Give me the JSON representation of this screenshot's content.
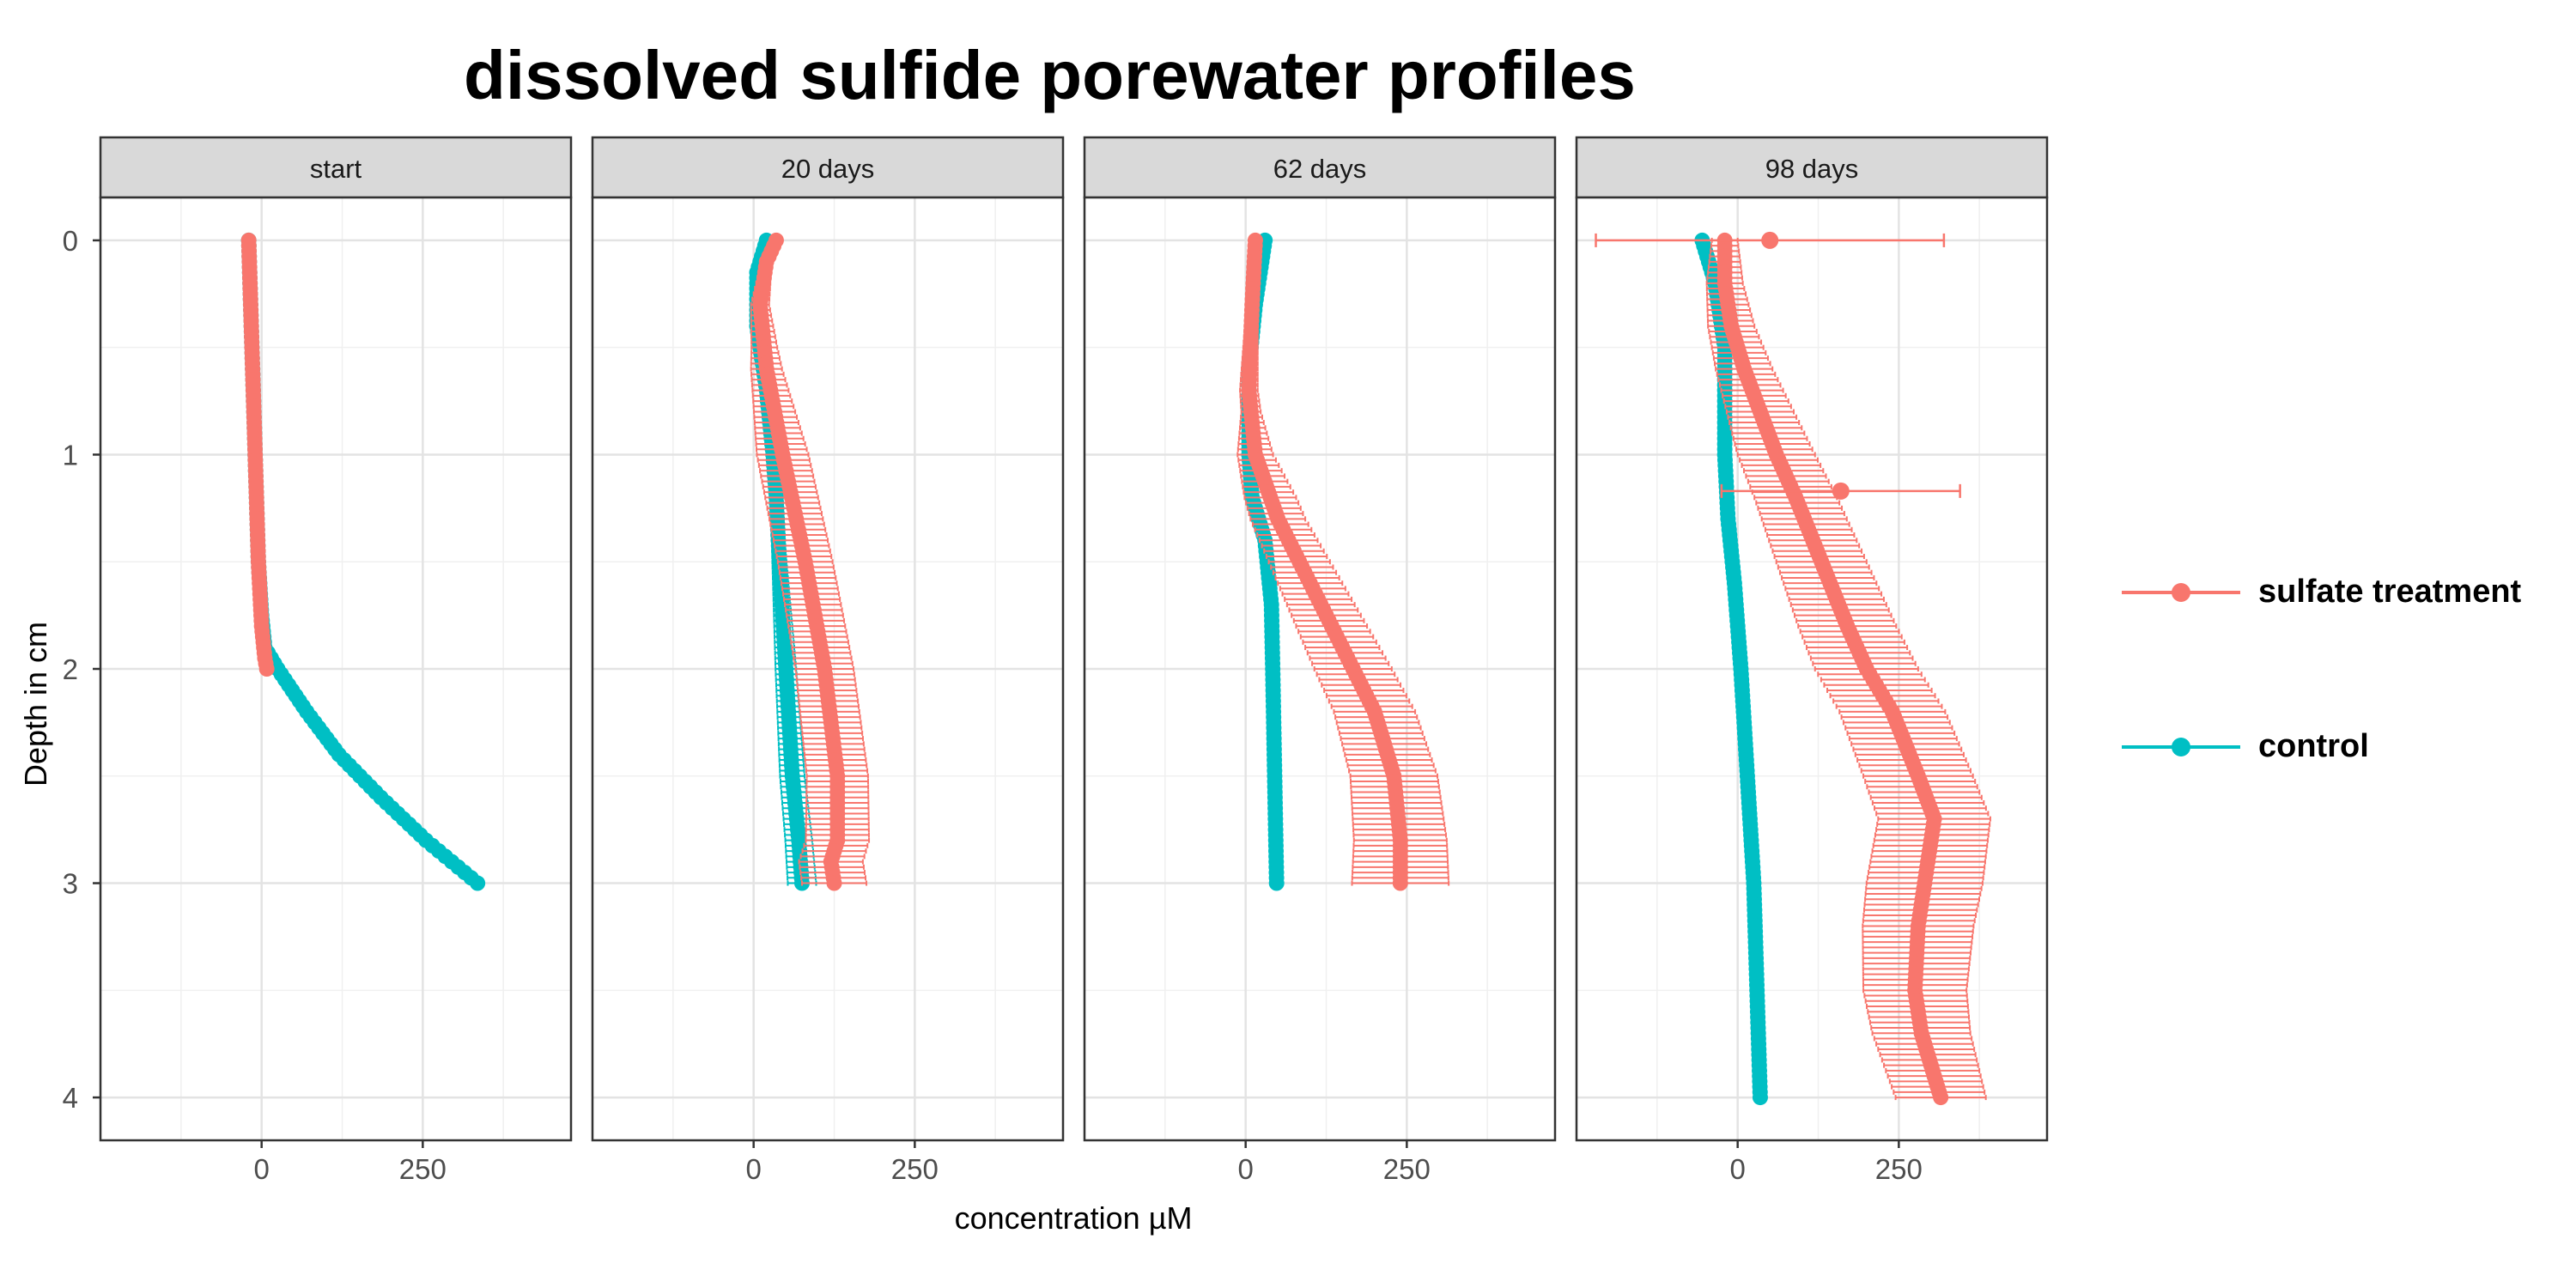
{
  "chart_data": {
    "type": "scatter",
    "title": "dissolved sulfide porewater profiles",
    "xlabel": "concentration µM",
    "ylabel": "Depth in cm",
    "xlim": [
      -250,
      480
    ],
    "ylim": [
      4.2,
      -0.2
    ],
    "y_reversed": true,
    "grid": true,
    "x_ticks": [
      0,
      250
    ],
    "x_tick_labels": [
      "0",
      "250"
    ],
    "y_ticks": [
      0,
      1,
      2,
      3,
      4
    ],
    "y_tick_labels": [
      "0",
      "1",
      "2",
      "3",
      "4"
    ],
    "legend_position": "right",
    "colors": {
      "sulfate treatment": "#F8766D",
      "control": "#00BFC4"
    },
    "legend": [
      {
        "name": "sulfate treatment",
        "color": "#F8766D"
      },
      {
        "name": "control",
        "color": "#00BFC4"
      }
    ],
    "facets": [
      {
        "label": "start",
        "series": [
          {
            "name": "control",
            "depth_max": 3.0,
            "profile": [
              [
                0,
                -20
              ],
              [
                0.5,
                -15
              ],
              [
                1.0,
                -10
              ],
              [
                1.5,
                -5
              ],
              [
                1.75,
                0
              ],
              [
                1.9,
                5
              ],
              [
                2.0,
                25
              ],
              [
                2.2,
                70
              ],
              [
                2.4,
                120
              ],
              [
                2.6,
                185
              ],
              [
                2.8,
                255
              ],
              [
                3.0,
                335
              ]
            ],
            "error": [
              [
                0,
                0
              ],
              [
                3,
                0
              ]
            ]
          },
          {
            "name": "sulfate treatment",
            "depth_max": 2.0,
            "profile": [
              [
                0,
                -20
              ],
              [
                0.5,
                -15
              ],
              [
                1.0,
                -10
              ],
              [
                1.5,
                -5
              ],
              [
                1.8,
                0
              ],
              [
                1.95,
                5
              ],
              [
                2.0,
                8
              ]
            ],
            "error": [
              [
                0,
                0
              ],
              [
                2,
                0
              ]
            ]
          }
        ]
      },
      {
        "label": "20 days",
        "series": [
          {
            "name": "control",
            "depth_max": 3.0,
            "profile": [
              [
                0,
                20
              ],
              [
                0.15,
                5
              ],
              [
                0.4,
                5
              ],
              [
                0.7,
                20
              ],
              [
                1.0,
                30
              ],
              [
                1.2,
                35
              ],
              [
                1.5,
                40
              ],
              [
                2.0,
                50
              ],
              [
                2.5,
                60
              ],
              [
                2.8,
                70
              ],
              [
                3.0,
                75
              ]
            ],
            "error": [
              [
                0,
                2
              ],
              [
                1.2,
                8
              ],
              [
                2.0,
                16
              ],
              [
                3.0,
                22
              ]
            ]
          },
          {
            "name": "sulfate treatment",
            "depth_max": 3.0,
            "profile": [
              [
                0,
                35
              ],
              [
                0.1,
                20
              ],
              [
                0.3,
                10
              ],
              [
                0.6,
                20
              ],
              [
                1.0,
                45
              ],
              [
                1.5,
                80
              ],
              [
                2.0,
                110
              ],
              [
                2.5,
                130
              ],
              [
                2.8,
                130
              ],
              [
                2.9,
                120
              ],
              [
                3.0,
                125
              ]
            ],
            "error": [
              [
                0,
                5
              ],
              [
                0.5,
                20
              ],
              [
                1.0,
                40
              ],
              [
                2.0,
                45
              ],
              [
                3.0,
                50
              ]
            ]
          }
        ]
      },
      {
        "label": "62 days",
        "series": [
          {
            "name": "control",
            "depth_max": 3.0,
            "profile": [
              [
                0,
                30
              ],
              [
                0.1,
                25
              ],
              [
                0.3,
                15
              ],
              [
                0.6,
                5
              ],
              [
                1.0,
                5
              ],
              [
                1.2,
                10
              ],
              [
                1.4,
                30
              ],
              [
                1.7,
                40
              ],
              [
                2.0,
                42
              ],
              [
                2.5,
                45
              ],
              [
                3.0,
                48
              ]
            ],
            "error": [
              [
                0,
                2
              ],
              [
                1.0,
                2
              ],
              [
                1.5,
                8
              ],
              [
                2.0,
                3
              ],
              [
                3.0,
                3
              ]
            ]
          },
          {
            "name": "sulfate treatment",
            "depth_max": 3.0,
            "profile": [
              [
                0,
                15
              ],
              [
                0.3,
                10
              ],
              [
                0.7,
                5
              ],
              [
                1.0,
                15
              ],
              [
                1.3,
                50
              ],
              [
                1.6,
                100
              ],
              [
                1.9,
                150
              ],
              [
                2.2,
                200
              ],
              [
                2.5,
                230
              ],
              [
                2.8,
                240
              ],
              [
                3.0,
                240
              ]
            ],
            "error": [
              [
                0,
                5
              ],
              [
                0.8,
                15
              ],
              [
                1.2,
                40
              ],
              [
                2.0,
                60
              ],
              [
                3.0,
                75
              ]
            ]
          }
        ]
      },
      {
        "label": "98 days",
        "series": [
          {
            "name": "control",
            "depth_max": 4.0,
            "profile": [
              [
                0,
                -55
              ],
              [
                0.2,
                -35
              ],
              [
                0.5,
                -20
              ],
              [
                1.0,
                -20
              ],
              [
                1.3,
                -15
              ],
              [
                1.6,
                -5
              ],
              [
                2.0,
                5
              ],
              [
                2.5,
                15
              ],
              [
                3.0,
                25
              ],
              [
                3.5,
                30
              ],
              [
                4.0,
                35
              ]
            ],
            "error": [
              [
                0,
                0
              ],
              [
                4,
                0
              ]
            ]
          },
          {
            "name": "sulfate treatment",
            "depth_max": 4.0,
            "profile": [
              [
                0,
                -20
              ],
              [
                0.2,
                -20
              ],
              [
                0.4,
                -10
              ],
              [
                0.6,
                10
              ],
              [
                0.8,
                35
              ],
              [
                1.0,
                60
              ],
              [
                1.2,
                90
              ],
              [
                1.5,
                130
              ],
              [
                1.8,
                170
              ],
              [
                2.0,
                200
              ],
              [
                2.2,
                240
              ],
              [
                2.5,
                280
              ],
              [
                2.7,
                305
              ],
              [
                3.0,
                290
              ],
              [
                3.2,
                280
              ],
              [
                3.5,
                275
              ],
              [
                3.7,
                285
              ],
              [
                4.0,
                315
              ]
            ],
            "error": [
              [
                0,
                20
              ],
              [
                1.0,
                60
              ],
              [
                2.0,
                80
              ],
              [
                3.0,
                90
              ],
              [
                4.0,
                70
              ]
            ]
          }
        ],
        "outliers": [
          {
            "series": "sulfate treatment",
            "depth": 0,
            "value": 50,
            "error": 270
          },
          {
            "series": "sulfate treatment",
            "depth": 1.17,
            "value": 160,
            "error": 185
          }
        ]
      }
    ]
  }
}
